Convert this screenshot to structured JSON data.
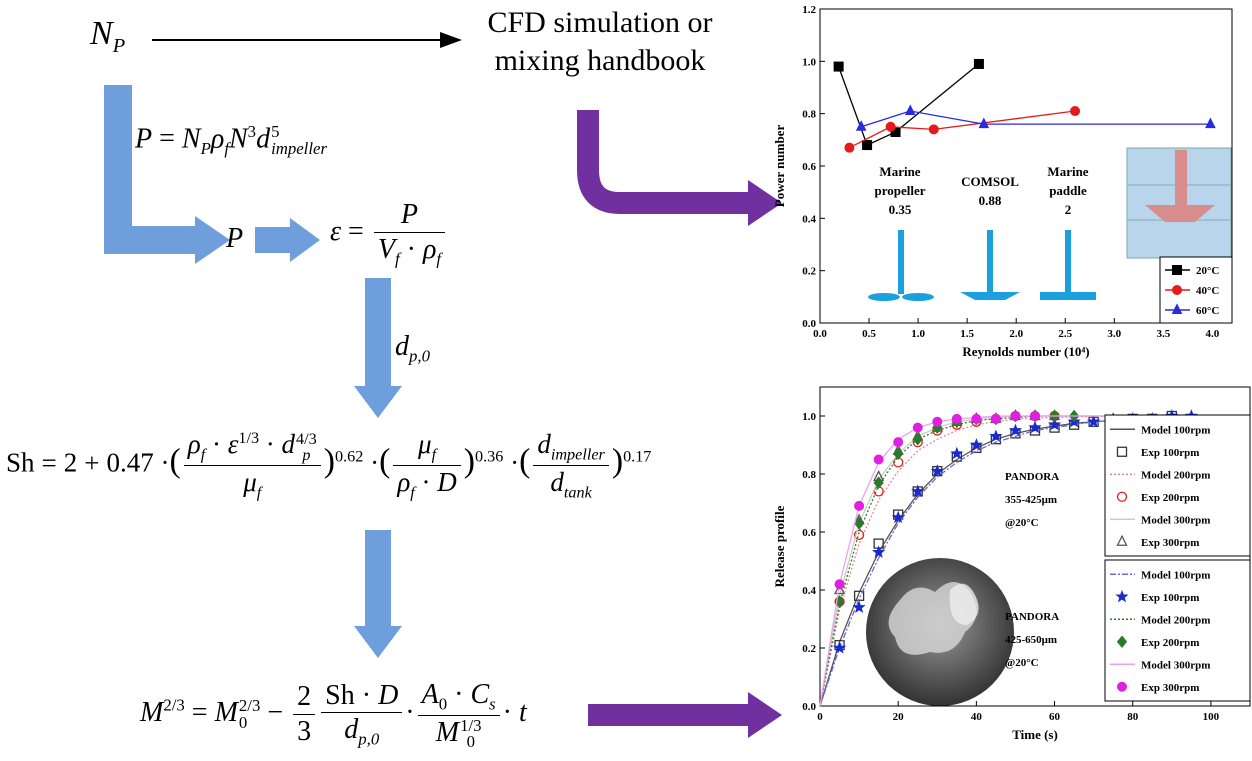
{
  "diagram": {
    "np_label": [
      "N",
      "P"
    ],
    "cfd_box": [
      "CFD simulation or",
      "mixing handbook"
    ],
    "eq_power": [
      "P",
      "=",
      "N",
      "P",
      "ρ",
      "f",
      "N",
      "3",
      "d",
      "5",
      "impeller"
    ],
    "p_label": "P",
    "eq_epsilon": [
      "ε",
      "=",
      "P",
      "V",
      "f",
      "·",
      "ρ",
      "f"
    ],
    "dp0_label": [
      "d",
      "p,0"
    ],
    "eq_sh": [
      "Sh",
      "=",
      "2",
      "+",
      "0.47",
      "·",
      "(",
      "ρ",
      "f",
      "·",
      "ε",
      "1/3",
      "·",
      "d",
      "p",
      "4/3",
      "μ",
      "f",
      ")",
      "0.62",
      "·",
      "(",
      "μ",
      "f",
      "ρ",
      "f",
      "·",
      "D",
      ")",
      "0.36",
      "·",
      "(",
      "d",
      "impeller",
      "d",
      "tank",
      ")",
      "0.17"
    ],
    "eq_mass": [
      "M",
      "2/3",
      "=",
      "M",
      "0",
      "2/3",
      "−",
      "2",
      "3",
      "Sh",
      "·",
      "D",
      "d",
      "p,0",
      "·",
      "A",
      "0",
      "·",
      "C",
      "s",
      "M",
      "0",
      "1/3",
      "·",
      "t"
    ]
  },
  "chart_data": [
    {
      "type": "line",
      "xlabel": "Reynolds number (10⁴)",
      "ylabel": "Power number",
      "xlim": [
        0,
        4.2
      ],
      "ylim": [
        0,
        1.2
      ],
      "xticks": [
        {
          "value": 0,
          "label": "0.0"
        },
        {
          "value": 0.5,
          "label": "0.5"
        },
        {
          "value": 1,
          "label": "1.0"
        },
        {
          "value": 1.5,
          "label": "1.5"
        },
        {
          "value": 2,
          "label": "2.0"
        },
        {
          "value": 2.5,
          "label": "2.5"
        },
        {
          "value": 3,
          "label": "3.0"
        },
        {
          "value": 3.5,
          "label": "3.5"
        },
        {
          "value": 4,
          "label": "4.0"
        }
      ],
      "yticks": [
        {
          "value": 0,
          "label": "0.0"
        },
        {
          "value": 0.2,
          "label": "0.2"
        },
        {
          "value": 0.4,
          "label": "0.4"
        },
        {
          "value": 0.6,
          "label": "0.6"
        },
        {
          "value": 0.8,
          "label": "0.8"
        },
        {
          "value": 1,
          "label": "1.0"
        },
        {
          "value": 1.2,
          "label": "1.2"
        }
      ],
      "legend": "lower right",
      "series": [
        {
          "name": "20°C",
          "color": "#000000",
          "marker": "square",
          "line_style": "solid",
          "x": [
            0.19,
            0.48,
            0.77,
            1.62
          ],
          "values": [
            0.98,
            0.68,
            0.73,
            0.99
          ]
        },
        {
          "name": "40°C",
          "color": "#e51a1a",
          "marker": "circle",
          "line_style": "solid",
          "x": [
            0.3,
            0.72,
            1.16,
            2.6
          ],
          "values": [
            0.67,
            0.75,
            0.74,
            0.81
          ]
        },
        {
          "name": "60°C",
          "color": "#2a2ae0",
          "marker": "triangle",
          "line_style": "solid",
          "x": [
            0.42,
            0.92,
            1.67,
            3.98
          ],
          "values": [
            0.75,
            0.81,
            0.76,
            0.76
          ]
        }
      ],
      "annotations": [
        "Marine",
        "propeller",
        "0.35",
        "COMSOL",
        "0.88",
        "Marine",
        "paddle",
        "2"
      ]
    },
    {
      "type": "line",
      "xlabel": "Time (s)",
      "ylabel": "Release profile",
      "xlim": [
        0,
        110
      ],
      "ylim": [
        0,
        1.1
      ],
      "xticks": [
        0,
        20,
        40,
        60,
        80,
        100
      ],
      "yticks": [
        {
          "value": 0,
          "label": "0.0"
        },
        {
          "value": 0.2,
          "label": "0.2"
        },
        {
          "value": 0.4,
          "label": "0.4"
        },
        {
          "value": 0.6,
          "label": "0.6"
        },
        {
          "value": 0.8,
          "label": "0.8"
        },
        {
          "value": 1,
          "label": "1.0"
        }
      ],
      "legend": "right",
      "x": [
        0,
        5,
        10,
        15,
        20,
        25,
        30,
        35,
        40,
        45,
        50,
        55,
        60,
        65,
        70,
        75,
        80,
        85,
        90,
        95
      ],
      "series": [
        {
          "name": "Model 100rpm",
          "color": "#555555",
          "line_style": "solid",
          "values": [
            0,
            0.22,
            0.39,
            0.53,
            0.64,
            0.73,
            0.8,
            0.85,
            0.89,
            0.92,
            0.94,
            0.955,
            0.965,
            0.975,
            0.98,
            0.985,
            0.99,
            0.993,
            0.995,
            null
          ]
        },
        {
          "name": "Exp 100rpm",
          "color": "#333333",
          "marker": "square-open",
          "line_style": "none",
          "values": [
            null,
            0.21,
            0.38,
            0.56,
            0.66,
            0.74,
            0.81,
            0.86,
            0.89,
            0.92,
            0.94,
            0.95,
            0.96,
            0.97,
            0.98,
            0.98,
            0.99,
            0.99,
            1.0,
            null
          ]
        },
        {
          "name": "Model 200rpm",
          "color": "#e88a8a",
          "line_style": "dotted",
          "values": [
            0,
            0.33,
            0.56,
            0.71,
            0.81,
            0.88,
            0.92,
            0.95,
            0.97,
            0.98,
            0.99,
            0.993,
            0.995,
            0.997,
            0.998,
            0.999,
            1,
            1,
            1,
            null
          ]
        },
        {
          "name": "Exp 200rpm",
          "color": "#e02020",
          "marker": "circle-open",
          "line_style": "none",
          "values": [
            null,
            0.36,
            0.59,
            0.74,
            0.84,
            0.91,
            0.95,
            0.97,
            0.98,
            0.99,
            1.0,
            1.0,
            1.0,
            null,
            null,
            null,
            null,
            null,
            null,
            null
          ]
        },
        {
          "name": "Model 300rpm",
          "color": "#b8d8b8",
          "line_style": "solid",
          "values": [
            0,
            0.38,
            0.63,
            0.78,
            0.87,
            0.93,
            0.96,
            0.98,
            0.99,
            0.995,
            1,
            1,
            1,
            1,
            1,
            1,
            1,
            1,
            1,
            null
          ]
        },
        {
          "name": "Exp 300rpm",
          "color": "#555555",
          "marker": "triangle-open",
          "line_style": "none",
          "values": [
            null,
            0.4,
            0.64,
            0.79,
            0.88,
            0.93,
            0.96,
            0.98,
            0.99,
            0.99,
            1.0,
            1.0,
            1.0,
            null,
            null,
            null,
            null,
            null,
            null,
            null
          ]
        },
        {
          "name": "Model 100rpm",
          "color": "#6a6ad8",
          "line_style": "dashdot",
          "values": [
            0,
            0.2,
            0.37,
            0.51,
            0.63,
            0.72,
            0.79,
            0.84,
            0.88,
            0.91,
            0.93,
            0.95,
            0.96,
            0.97,
            0.98,
            0.985,
            0.99,
            0.993,
            0.995,
            0.997
          ]
        },
        {
          "name": "Exp 100rpm",
          "color": "#1a2ad0",
          "marker": "star",
          "line_style": "none",
          "values": [
            null,
            0.2,
            0.34,
            0.53,
            0.65,
            0.74,
            0.81,
            0.87,
            0.9,
            0.93,
            0.95,
            0.96,
            0.97,
            0.98,
            0.98,
            0.99,
            0.99,
            0.99,
            1.0,
            1.0
          ]
        },
        {
          "name": "Model 200rpm",
          "color": "#4a6a4a",
          "line_style": "dotted",
          "values": [
            0,
            0.35,
            0.6,
            0.76,
            0.86,
            0.92,
            0.95,
            0.97,
            0.985,
            0.99,
            0.995,
            1,
            1,
            1,
            1,
            1,
            1,
            1,
            1,
            null
          ]
        },
        {
          "name": "Exp 200rpm",
          "color": "#2a7a2a",
          "marker": "diamond",
          "line_style": "none",
          "values": [
            null,
            0.36,
            0.63,
            0.77,
            0.87,
            0.92,
            0.96,
            0.98,
            0.99,
            0.99,
            1.0,
            1.0,
            1.0,
            1.0,
            null,
            null,
            null,
            null,
            null,
            null
          ]
        },
        {
          "name": "Model 300rpm",
          "color": "#f0a0f0",
          "line_style": "solid",
          "values": [
            0,
            0.42,
            0.69,
            0.84,
            0.92,
            0.96,
            0.98,
            0.99,
            0.995,
            1,
            1,
            1,
            1,
            1,
            1,
            1,
            1,
            1,
            1,
            null
          ]
        },
        {
          "name": "Exp 300rpm",
          "color": "#e020e0",
          "marker": "circle",
          "line_style": "none",
          "values": [
            null,
            0.42,
            0.69,
            0.85,
            0.91,
            0.96,
            0.98,
            0.99,
            0.99,
            0.99,
            1.0,
            1.0,
            null,
            null,
            null,
            null,
            null,
            null,
            null,
            null
          ]
        }
      ],
      "annotations": [
        "PANDORA",
        "355-425μm",
        "@20°C",
        "PANDORA",
        "425-650μm",
        "@20°C"
      ]
    }
  ]
}
